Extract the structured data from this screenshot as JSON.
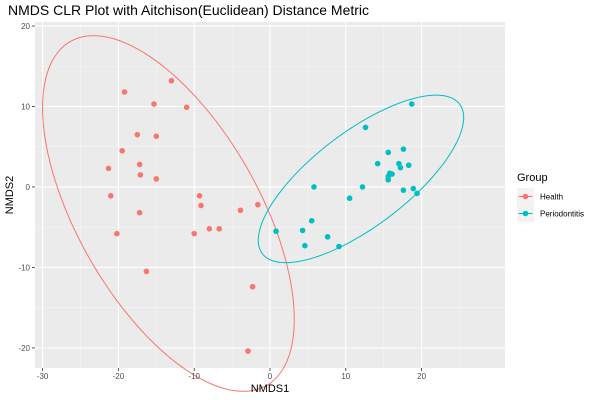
{
  "chart_data": {
    "type": "scatter",
    "title": "NMDS CLR Plot with Aitchison(Euclidean) Distance Metric",
    "xlabel": "NMDS1",
    "ylabel": "NMDS2",
    "xlim": [
      -31,
      31
    ],
    "ylim": [
      -22.5,
      20.5
    ],
    "xticks": [
      -30,
      -20,
      -10,
      0,
      10,
      20
    ],
    "yticks": [
      -20,
      -10,
      0,
      10,
      20
    ],
    "grid": true,
    "legend": {
      "title": "Group",
      "position": "right",
      "entries": [
        "Health",
        "Periodontitis"
      ]
    },
    "series": [
      {
        "name": "Health",
        "color": "#F8766D",
        "points": [
          [
            -13.0,
            13.2
          ],
          [
            -19.2,
            11.8
          ],
          [
            -15.3,
            10.3
          ],
          [
            -11.0,
            9.9
          ],
          [
            -17.5,
            6.5
          ],
          [
            -15.0,
            6.3
          ],
          [
            -19.5,
            4.5
          ],
          [
            -21.3,
            2.3
          ],
          [
            -17.2,
            2.8
          ],
          [
            -17.1,
            1.5
          ],
          [
            -15.0,
            1.0
          ],
          [
            -21.0,
            -1.1
          ],
          [
            -9.3,
            -1.1
          ],
          [
            -9.1,
            -2.3
          ],
          [
            -17.2,
            -3.2
          ],
          [
            -3.9,
            -2.9
          ],
          [
            -1.6,
            -2.2
          ],
          [
            -20.2,
            -5.8
          ],
          [
            -10.0,
            -5.8
          ],
          [
            -8.0,
            -5.2
          ],
          [
            -6.7,
            -5.2
          ],
          [
            -16.3,
            -10.5
          ],
          [
            -2.3,
            -12.4
          ],
          [
            -2.9,
            -20.4
          ]
        ]
      },
      {
        "name": "Periodontitis",
        "color": "#00BFC4",
        "points": [
          [
            18.7,
            10.3
          ],
          [
            12.6,
            7.4
          ],
          [
            17.6,
            4.7
          ],
          [
            15.6,
            4.3
          ],
          [
            14.2,
            2.9
          ],
          [
            17.0,
            2.9
          ],
          [
            18.3,
            2.7
          ],
          [
            17.2,
            2.4
          ],
          [
            15.8,
            1.7
          ],
          [
            16.1,
            1.6
          ],
          [
            15.6,
            1.3
          ],
          [
            15.6,
            0.9
          ],
          [
            5.8,
            0.0
          ],
          [
            12.2,
            0.0
          ],
          [
            17.6,
            -0.4
          ],
          [
            18.9,
            -0.2
          ],
          [
            19.4,
            -0.8
          ],
          [
            10.5,
            -1.4
          ],
          [
            5.5,
            -4.2
          ],
          [
            0.8,
            -5.5
          ],
          [
            4.3,
            -5.4
          ],
          [
            7.6,
            -6.2
          ],
          [
            4.6,
            -7.3
          ],
          [
            9.1,
            -7.4
          ]
        ]
      }
    ],
    "ellipses": [
      {
        "group": "Health",
        "color": "#F8766D",
        "center": [
          -13.4,
          -3.3
        ],
        "semi_axes": [
          25.0,
          11.8
        ],
        "angle_deg": -58
      },
      {
        "group": "Periodontitis",
        "color": "#00BFC4",
        "center": [
          12.0,
          1.0
        ],
        "semi_axes": [
          16.0,
          6.0
        ],
        "angle_deg": 35
      }
    ]
  }
}
